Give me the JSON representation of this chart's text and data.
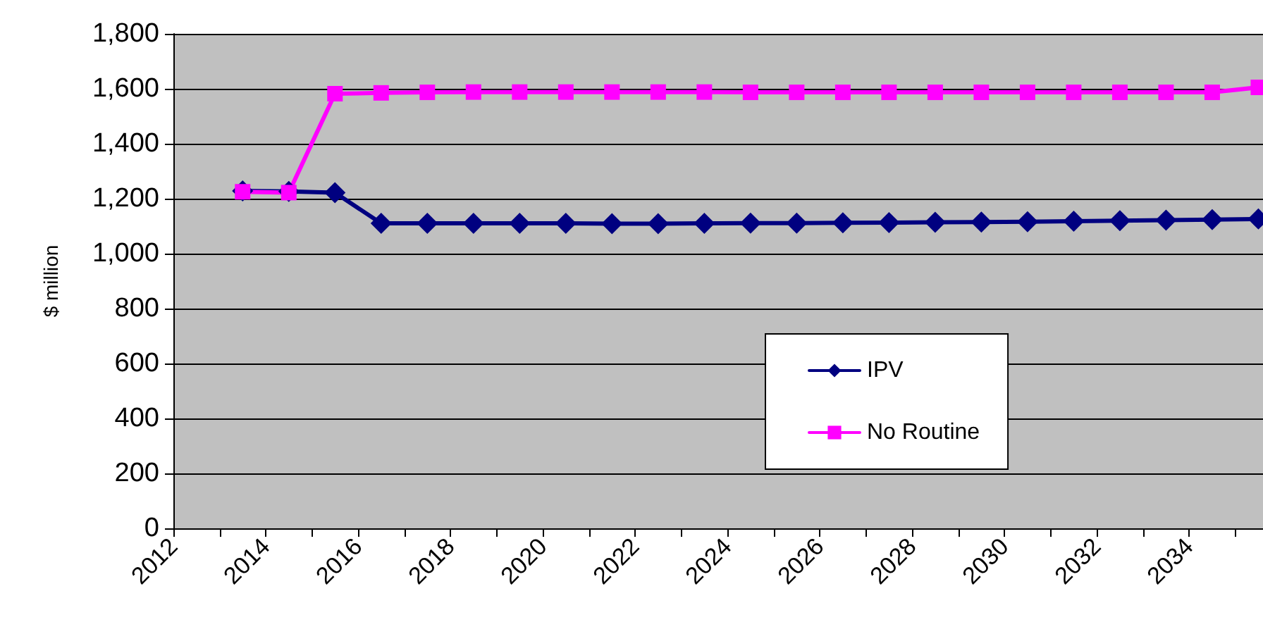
{
  "chart_data": {
    "type": "line",
    "ylabel": "$ million",
    "x": [
      2013.5,
      2014.5,
      2015.5,
      2016.5,
      2017.5,
      2018.5,
      2019.5,
      2020.5,
      2021.5,
      2022.5,
      2023.5,
      2024.5,
      2025.5,
      2026.5,
      2027.5,
      2028.5,
      2029.5,
      2030.5,
      2031.5,
      2032.5,
      2033.5,
      2034.5,
      2035.5
    ],
    "series": [
      {
        "name": "IPV",
        "color": "#000080",
        "marker": "diamond",
        "values": [
          1228,
          1226,
          1222,
          1110,
          1110,
          1110,
          1110,
          1110,
          1109,
          1109,
          1110,
          1111,
          1111,
          1112,
          1113,
          1114,
          1115,
          1116,
          1118,
          1120,
          1122,
          1124,
          1126
        ]
      },
      {
        "name": "No Routine",
        "color": "#ff00ff",
        "marker": "square",
        "values": [
          1225,
          1222,
          1582,
          1585,
          1587,
          1588,
          1588,
          1588,
          1588,
          1588,
          1588,
          1587,
          1587,
          1587,
          1587,
          1587,
          1587,
          1587,
          1587,
          1587,
          1587,
          1587,
          1605
        ]
      }
    ],
    "xlim": [
      2012,
      2035.6
    ],
    "xticks": [
      2012,
      {
        "value": 2013,
        "label": null
      },
      2014,
      {
        "value": 2015,
        "label": null
      },
      2016,
      {
        "value": 2017,
        "label": null
      },
      2018,
      {
        "value": 2019,
        "label": null
      },
      2020,
      {
        "value": 2021,
        "label": null
      },
      2022,
      {
        "value": 2023,
        "label": null
      },
      2024,
      {
        "value": 2025,
        "label": null
      },
      2026,
      {
        "value": 2027,
        "label": null
      },
      2028,
      {
        "value": 2029,
        "label": null
      },
      2030,
      {
        "value": 2031,
        "label": null
      },
      2032,
      {
        "value": 2033,
        "label": null
      },
      2034,
      {
        "value": 2035,
        "label": null
      }
    ],
    "ylim": [
      0,
      1800
    ],
    "yticks": [
      0,
      200,
      400,
      600,
      800,
      {
        "value": 1000,
        "label": "1,000"
      },
      {
        "value": 1200,
        "label": "1,200"
      },
      {
        "value": 1400,
        "label": "1,400"
      },
      {
        "value": 1600,
        "label": "1,600"
      },
      {
        "value": 1800,
        "label": "1,800"
      }
    ],
    "grid": "y",
    "legend": "bottom right",
    "line_style": "solid"
  }
}
